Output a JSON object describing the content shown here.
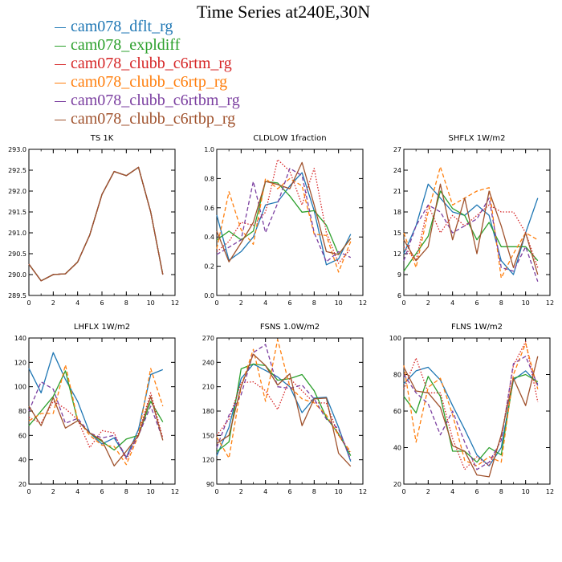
{
  "title": "Time Series at240E,30N",
  "legend": [
    {
      "label": "cam078_dflt_rg",
      "color": "#1f77b4"
    },
    {
      "label": "cam078_expldiff",
      "color": "#2ca02c"
    },
    {
      "label": "cam078_clubb_c6rtm_rg",
      "color": "#d62728"
    },
    {
      "label": "cam078_clubb_c6rtp_rg",
      "color": "#ff7f0e"
    },
    {
      "label": "cam078_clubb_c6rtbm_rg",
      "color": "#7b3fa0"
    },
    {
      "label": "cam078_clubb_c6rtbp_rg",
      "color": "#a0522d"
    }
  ],
  "chart_data": [
    {
      "type": "line",
      "title": "TS  1K",
      "xlim": [
        0,
        12
      ],
      "xticks": [
        "0",
        "2",
        "4",
        "6",
        "8",
        "10",
        "12"
      ],
      "ylim": [
        289.5,
        293.0
      ],
      "yticks": [
        "289.5",
        "290.0",
        "290.5",
        "291.0",
        "291.5",
        "292.0",
        "292.5",
        "293.0"
      ],
      "x": [
        0,
        1,
        2,
        3,
        4,
        5,
        6,
        7,
        8,
        9,
        10,
        11
      ],
      "series": [
        {
          "color": "#1f77b4",
          "dash": "solid",
          "values": [
            290.25,
            289.85,
            290.0,
            290.02,
            290.3,
            290.95,
            291.92,
            292.47,
            292.37,
            292.57,
            291.5,
            290.0
          ]
        },
        {
          "color": "#2ca02c",
          "dash": "solid",
          "values": [
            290.25,
            289.85,
            290.0,
            290.02,
            290.3,
            290.95,
            291.92,
            292.47,
            292.37,
            292.57,
            291.5,
            290.0
          ]
        },
        {
          "color": "#d62728",
          "dash": "dotted",
          "values": [
            290.25,
            289.85,
            290.0,
            290.02,
            290.3,
            290.95,
            291.92,
            292.47,
            292.37,
            292.57,
            291.5,
            290.0
          ]
        },
        {
          "color": "#ff7f0e",
          "dash": "dashed",
          "values": [
            290.25,
            289.85,
            290.0,
            290.02,
            290.3,
            290.95,
            291.92,
            292.47,
            292.37,
            292.57,
            291.5,
            290.0
          ]
        },
        {
          "color": "#7b3fa0",
          "dash": "dashed",
          "values": [
            290.25,
            289.85,
            290.0,
            290.02,
            290.3,
            290.95,
            291.92,
            292.47,
            292.37,
            292.57,
            291.5,
            290.0
          ]
        },
        {
          "color": "#a0522d",
          "dash": "solid",
          "values": [
            290.25,
            289.85,
            290.0,
            290.02,
            290.3,
            290.95,
            291.92,
            292.47,
            292.37,
            292.57,
            291.5,
            290.0
          ]
        }
      ]
    },
    {
      "type": "line",
      "title": "CLDLOW  1fraction",
      "xlim": [
        0,
        12
      ],
      "xticks": [
        "0",
        "2",
        "4",
        "6",
        "8",
        "10",
        "12"
      ],
      "ylim": [
        0.0,
        1.0
      ],
      "yticks": [
        "0.0",
        "0.2",
        "0.4",
        "0.6",
        "0.8",
        "1.0"
      ],
      "x": [
        0,
        1,
        2,
        3,
        4,
        5,
        6,
        7,
        8,
        9,
        10,
        11
      ],
      "series": [
        {
          "color": "#1f77b4",
          "dash": "solid",
          "values": [
            0.55,
            0.24,
            0.3,
            0.4,
            0.62,
            0.64,
            0.75,
            0.84,
            0.58,
            0.21,
            0.25,
            0.42
          ]
        },
        {
          "color": "#2ca02c",
          "dash": "solid",
          "values": [
            0.38,
            0.44,
            0.38,
            0.44,
            0.78,
            0.77,
            0.68,
            0.57,
            0.58,
            0.48,
            0.28,
            0.39
          ]
        },
        {
          "color": "#d62728",
          "dash": "dotted",
          "values": [
            0.3,
            0.37,
            0.5,
            0.48,
            0.57,
            0.93,
            0.85,
            0.62,
            0.87,
            0.43,
            0.22,
            0.32
          ]
        },
        {
          "color": "#ff7f0e",
          "dash": "dashed",
          "values": [
            0.32,
            0.71,
            0.45,
            0.35,
            0.8,
            0.73,
            0.8,
            0.75,
            0.42,
            0.41,
            0.16,
            0.37
          ]
        },
        {
          "color": "#7b3fa0",
          "dash": "dashed",
          "values": [
            0.28,
            0.33,
            0.38,
            0.78,
            0.43,
            0.63,
            0.87,
            0.82,
            0.43,
            0.23,
            0.3,
            0.26
          ]
        },
        {
          "color": "#a0522d",
          "dash": "solid",
          "values": [
            0.44,
            0.23,
            0.36,
            0.5,
            0.78,
            0.76,
            0.73,
            0.91,
            0.62,
            0.3,
            0.28,
            0.39
          ]
        }
      ]
    },
    {
      "type": "line",
      "title": "SHFLX  1W/m2",
      "xlim": [
        0,
        12
      ],
      "xticks": [
        "0",
        "2",
        "4",
        "6",
        "8",
        "10",
        "12"
      ],
      "ylim": [
        6,
        27
      ],
      "yticks": [
        "6",
        "9",
        "12",
        "15",
        "18",
        "21",
        "24",
        "27"
      ],
      "x": [
        0,
        1,
        2,
        3,
        4,
        5,
        6,
        7,
        8,
        9,
        10,
        11
      ],
      "series": [
        {
          "color": "#1f77b4",
          "dash": "solid",
          "values": [
            12.0,
            16.0,
            22.0,
            20.0,
            18.0,
            17.5,
            19.0,
            17.5,
            11.0,
            9.0,
            15.0,
            20.0
          ]
        },
        {
          "color": "#2ca02c",
          "dash": "solid",
          "values": [
            9.5,
            12.0,
            14.5,
            21.0,
            18.5,
            17.5,
            14.0,
            16.5,
            13.0,
            13.0,
            13.0,
            11.0
          ]
        },
        {
          "color": "#d62728",
          "dash": "dotted",
          "values": [
            13.0,
            11.0,
            19.0,
            15.0,
            17.5,
            16.0,
            17.5,
            19.0,
            18.0,
            18.0,
            15.0,
            10.0
          ]
        },
        {
          "color": "#ff7f0e",
          "dash": "dashed",
          "values": [
            15.0,
            10.0,
            18.0,
            24.5,
            19.0,
            20.0,
            21.0,
            21.5,
            8.5,
            12.0,
            15.0,
            14.0
          ]
        },
        {
          "color": "#7b3fa0",
          "dash": "dashed",
          "values": [
            11.0,
            16.0,
            19.0,
            18.0,
            15.0,
            16.0,
            17.0,
            20.0,
            10.0,
            9.5,
            13.0,
            8.0
          ]
        },
        {
          "color": "#a0522d",
          "dash": "solid",
          "values": [
            14.0,
            11.0,
            13.0,
            22.0,
            14.0,
            20.0,
            12.0,
            21.0,
            16.0,
            10.0,
            15.0,
            9.0
          ]
        }
      ]
    },
    {
      "type": "line",
      "title": "LHFLX  1W/m2",
      "xlim": [
        0,
        12
      ],
      "xticks": [
        "0",
        "2",
        "4",
        "6",
        "8",
        "10",
        "12"
      ],
      "ylim": [
        20,
        140
      ],
      "yticks": [
        "20",
        "40",
        "60",
        "80",
        "100",
        "120",
        "140"
      ],
      "x": [
        0,
        1,
        2,
        3,
        4,
        5,
        6,
        7,
        8,
        9,
        10,
        11
      ],
      "series": [
        {
          "color": "#1f77b4",
          "dash": "solid",
          "values": [
            115,
            95,
            128,
            106,
            88,
            62,
            53,
            58,
            42,
            65,
            110,
            114
          ]
        },
        {
          "color": "#2ca02c",
          "dash": "solid",
          "values": [
            68,
            80,
            92,
            113,
            72,
            62,
            55,
            48,
            57,
            60,
            88,
            71
          ]
        },
        {
          "color": "#d62728",
          "dash": "dotted",
          "values": [
            75,
            70,
            88,
            82,
            73,
            50,
            64,
            62,
            40,
            62,
            95,
            58
          ]
        },
        {
          "color": "#ff7f0e",
          "dash": "dashed",
          "values": [
            72,
            78,
            78,
            118,
            73,
            60,
            52,
            51,
            36,
            60,
            115,
            84
          ]
        },
        {
          "color": "#7b3fa0",
          "dash": "dashed",
          "values": [
            80,
            104,
            98,
            70,
            74,
            62,
            58,
            60,
            42,
            60,
            84,
            57
          ]
        },
        {
          "color": "#a0522d",
          "dash": "solid",
          "values": [
            84,
            68,
            91,
            66,
            72,
            62,
            56,
            35,
            47,
            60,
            92,
            56
          ]
        }
      ]
    },
    {
      "type": "line",
      "title": "FSNS  1.0W/m2",
      "xlim": [
        0,
        12
      ],
      "xticks": [
        "0",
        "2",
        "4",
        "6",
        "8",
        "10",
        "12"
      ],
      "ylim": [
        90,
        270
      ],
      "yticks": [
        "90",
        "120",
        "150",
        "180",
        "210",
        "240",
        "270"
      ],
      "x": [
        0,
        1,
        2,
        3,
        4,
        5,
        6,
        7,
        8,
        9,
        10,
        11
      ],
      "series": [
        {
          "color": "#1f77b4",
          "dash": "solid",
          "values": [
            125,
            160,
            220,
            238,
            230,
            222,
            210,
            178,
            196,
            197,
            160,
            118
          ]
        },
        {
          "color": "#2ca02c",
          "dash": "solid",
          "values": [
            130,
            142,
            232,
            238,
            236,
            218,
            220,
            225,
            205,
            172,
            152,
            125
          ]
        },
        {
          "color": "#d62728",
          "dash": "dotted",
          "values": [
            150,
            170,
            215,
            216,
            205,
            182,
            220,
            205,
            190,
            190,
            150,
            128
          ]
        },
        {
          "color": "#ff7f0e",
          "dash": "dashed",
          "values": [
            148,
            122,
            210,
            256,
            192,
            268,
            210,
            195,
            190,
            175,
            150,
            130
          ]
        },
        {
          "color": "#7b3fa0",
          "dash": "dashed",
          "values": [
            135,
            175,
            200,
            252,
            262,
            210,
            208,
            212,
            195,
            170,
            158,
            120
          ]
        },
        {
          "color": "#a0522d",
          "dash": "solid",
          "values": [
            140,
            150,
            210,
            250,
            236,
            212,
            226,
            162,
            195,
            196,
            128,
            112
          ]
        }
      ]
    },
    {
      "type": "line",
      "title": "FLNS  1W/m2",
      "xlim": [
        0,
        12
      ],
      "xticks": [
        "0",
        "2",
        "4",
        "6",
        "8",
        "10",
        "12"
      ],
      "ylim": [
        20,
        100
      ],
      "yticks": [
        "20",
        "40",
        "60",
        "80",
        "100"
      ],
      "x": [
        0,
        1,
        2,
        3,
        4,
        5,
        6,
        7,
        8,
        9,
        10,
        11
      ],
      "series": [
        {
          "color": "#1f77b4",
          "dash": "solid",
          "values": [
            75,
            82,
            84,
            77,
            63,
            50,
            36,
            30,
            40,
            77,
            82,
            75
          ]
        },
        {
          "color": "#2ca02c",
          "dash": "solid",
          "values": [
            68,
            59,
            79,
            68,
            38,
            38,
            32,
            40,
            36,
            78,
            80,
            76
          ]
        },
        {
          "color": "#d62728",
          "dash": "dotted",
          "values": [
            72,
            89,
            70,
            70,
            45,
            28,
            35,
            30,
            45,
            85,
            98,
            65
          ]
        },
        {
          "color": "#ff7f0e",
          "dash": "dashed",
          "values": [
            85,
            43,
            73,
            78,
            58,
            33,
            30,
            35,
            32,
            80,
            97,
            72
          ]
        },
        {
          "color": "#7b3fa0",
          "dash": "dashed",
          "values": [
            80,
            70,
            64,
            47,
            60,
            43,
            28,
            32,
            44,
            86,
            90,
            74
          ]
        },
        {
          "color": "#a0522d",
          "dash": "solid",
          "values": [
            84,
            71,
            70,
            62,
            41,
            38,
            25,
            24,
            47,
            78,
            63,
            90
          ]
        }
      ]
    }
  ]
}
